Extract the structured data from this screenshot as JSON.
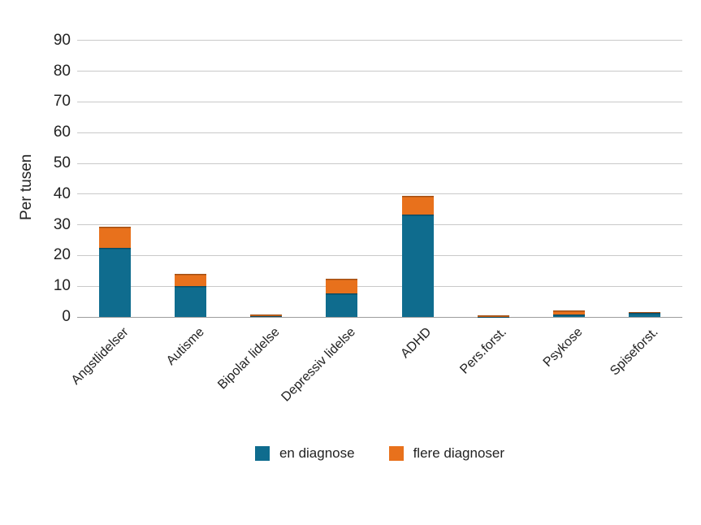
{
  "chart_data": {
    "type": "bar",
    "stacked": true,
    "title": "",
    "ylabel": "Per tusen",
    "xlabel": "",
    "ylim": [
      0,
      90
    ],
    "yticks": [
      0,
      10,
      20,
      30,
      40,
      50,
      60,
      70,
      80,
      90
    ],
    "grid": "horizontal-gridlines",
    "legend_position": "bottom-center",
    "categories": [
      "Angstlidelser",
      "Autisme",
      "Bipolar lidelse",
      "Depressiv lidelse",
      "ADHD",
      "Pers.forst.",
      "Psykose",
      "Spiseforst."
    ],
    "series": [
      {
        "name": "en diagnose",
        "color": "#0F6C8E",
        "values": [
          22.4,
          10.1,
          0.3,
          7.6,
          33.3,
          0.1,
          0.8,
          1.3
        ]
      },
      {
        "name": "flere diagnoser",
        "color": "#E8711C",
        "values": [
          7.0,
          3.9,
          0.5,
          4.9,
          6.0,
          0.5,
          1.3,
          0.2
        ]
      }
    ],
    "totals": [
      29.4,
      14.0,
      0.8,
      12.5,
      39.3,
      0.6,
      2.1,
      1.5
    ],
    "colors": {
      "gridline": "#C9C9C9",
      "zero_line": "#9E9E9E",
      "text": "#222222",
      "background": "#FFFFFF"
    }
  }
}
